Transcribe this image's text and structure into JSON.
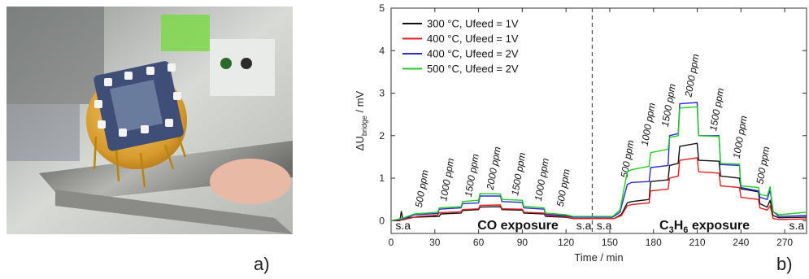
{
  "panels": {
    "a": {
      "label": "a)"
    },
    "b": {
      "label": "b)"
    }
  },
  "chart_data": {
    "type": "line",
    "xlabel": "Time / min",
    "ylabel_main": "ΔU",
    "ylabel_sub": "bridge",
    "ylabel_unit": " / mV",
    "xlim": [
      0,
      285
    ],
    "ylim": [
      -0.3,
      5
    ],
    "x_ticks": [
      0,
      30,
      60,
      90,
      120,
      150,
      180,
      210,
      240,
      270
    ],
    "y_ticks": [
      0,
      1,
      2,
      3,
      4,
      5
    ],
    "grid": false,
    "legend": "top-left",
    "vline_x": 138,
    "series": [
      {
        "name": "300 °C, Ufeed = 1V",
        "color": "#111111",
        "points": [
          [
            0,
            0
          ],
          [
            6,
            0
          ],
          [
            7,
            0.22
          ],
          [
            8,
            0.05
          ],
          [
            15,
            0.08
          ],
          [
            33,
            0.1
          ],
          [
            34,
            0.16
          ],
          [
            48,
            0.18
          ],
          [
            49,
            0.24
          ],
          [
            60,
            0.26
          ],
          [
            61,
            0.32
          ],
          [
            75,
            0.33
          ],
          [
            76,
            0.26
          ],
          [
            90,
            0.25
          ],
          [
            91,
            0.18
          ],
          [
            105,
            0.16
          ],
          [
            106,
            0.1
          ],
          [
            120,
            0.08
          ],
          [
            125,
            0.05
          ],
          [
            153,
            0.05
          ],
          [
            158,
            0.15
          ],
          [
            162,
            0.42
          ],
          [
            165,
            0.45
          ],
          [
            177,
            0.5
          ],
          [
            178,
            0.92
          ],
          [
            190,
            0.96
          ],
          [
            191,
            1.3
          ],
          [
            197,
            1.35
          ],
          [
            198,
            1.75
          ],
          [
            210,
            1.82
          ],
          [
            211,
            1.42
          ],
          [
            225,
            1.4
          ],
          [
            226,
            1.05
          ],
          [
            239,
            1.0
          ],
          [
            240,
            0.75
          ],
          [
            252,
            0.68
          ],
          [
            253,
            0.4
          ],
          [
            258,
            0.32
          ],
          [
            260,
            0.48
          ],
          [
            262,
            0.12
          ],
          [
            266,
            0.07
          ],
          [
            285,
            0.08
          ]
        ]
      },
      {
        "name": "400 °C, Ufeed = 1V",
        "color": "#e02020",
        "points": [
          [
            0,
            0
          ],
          [
            8,
            0.02
          ],
          [
            18,
            0.1
          ],
          [
            32,
            0.13
          ],
          [
            33,
            0.19
          ],
          [
            48,
            0.21
          ],
          [
            49,
            0.26
          ],
          [
            60,
            0.28
          ],
          [
            61,
            0.36
          ],
          [
            75,
            0.37
          ],
          [
            76,
            0.28
          ],
          [
            90,
            0.27
          ],
          [
            91,
            0.2
          ],
          [
            105,
            0.18
          ],
          [
            106,
            0.12
          ],
          [
            120,
            0.1
          ],
          [
            125,
            0.05
          ],
          [
            153,
            0.05
          ],
          [
            158,
            0.12
          ],
          [
            162,
            0.35
          ],
          [
            165,
            0.38
          ],
          [
            177,
            0.42
          ],
          [
            178,
            0.7
          ],
          [
            190,
            0.74
          ],
          [
            191,
            1.0
          ],
          [
            197,
            1.05
          ],
          [
            198,
            1.42
          ],
          [
            210,
            1.48
          ],
          [
            211,
            1.15
          ],
          [
            225,
            1.12
          ],
          [
            226,
            0.82
          ],
          [
            239,
            0.78
          ],
          [
            240,
            0.55
          ],
          [
            252,
            0.5
          ],
          [
            253,
            0.3
          ],
          [
            258,
            0.25
          ],
          [
            260,
            0.35
          ],
          [
            262,
            0.05
          ],
          [
            266,
            0.03
          ],
          [
            285,
            0.04
          ]
        ]
      },
      {
        "name": "400 °C, Ufeed = 2V",
        "color": "#2a2ad0",
        "points": [
          [
            0,
            0
          ],
          [
            8,
            0.04
          ],
          [
            16,
            0.14
          ],
          [
            32,
            0.17
          ],
          [
            33,
            0.27
          ],
          [
            48,
            0.3
          ],
          [
            49,
            0.4
          ],
          [
            60,
            0.42
          ],
          [
            61,
            0.58
          ],
          [
            75,
            0.58
          ],
          [
            76,
            0.45
          ],
          [
            90,
            0.43
          ],
          [
            91,
            0.3
          ],
          [
            105,
            0.27
          ],
          [
            106,
            0.15
          ],
          [
            120,
            0.12
          ],
          [
            125,
            0.08
          ],
          [
            152,
            0.08
          ],
          [
            157,
            0.2
          ],
          [
            162,
            0.85
          ],
          [
            165,
            0.9
          ],
          [
            177,
            0.92
          ],
          [
            178,
            1.25
          ],
          [
            190,
            1.3
          ],
          [
            191,
            2.0
          ],
          [
            197,
            2.05
          ],
          [
            198,
            2.75
          ],
          [
            210,
            2.78
          ],
          [
            211,
            2.0
          ],
          [
            225,
            2.0
          ],
          [
            226,
            1.32
          ],
          [
            239,
            1.3
          ],
          [
            240,
            0.78
          ],
          [
            252,
            0.7
          ],
          [
            253,
            0.55
          ],
          [
            258,
            0.5
          ],
          [
            260,
            0.72
          ],
          [
            262,
            0.22
          ],
          [
            266,
            0.1
          ],
          [
            285,
            0.12
          ]
        ]
      },
      {
        "name": "500 °C, Ufeed = 2V",
        "color": "#22cc22",
        "points": [
          [
            0,
            0
          ],
          [
            8,
            0.06
          ],
          [
            16,
            0.16
          ],
          [
            32,
            0.2
          ],
          [
            33,
            0.3
          ],
          [
            48,
            0.33
          ],
          [
            49,
            0.45
          ],
          [
            60,
            0.48
          ],
          [
            61,
            0.64
          ],
          [
            75,
            0.63
          ],
          [
            76,
            0.5
          ],
          [
            90,
            0.48
          ],
          [
            91,
            0.34
          ],
          [
            105,
            0.3
          ],
          [
            106,
            0.18
          ],
          [
            120,
            0.14
          ],
          [
            125,
            0.1
          ],
          [
            152,
            0.1
          ],
          [
            157,
            0.25
          ],
          [
            162,
            1.15
          ],
          [
            165,
            1.2
          ],
          [
            177,
            1.28
          ],
          [
            178,
            1.6
          ],
          [
            190,
            1.68
          ],
          [
            191,
            1.96
          ],
          [
            197,
            2.0
          ],
          [
            198,
            2.65
          ],
          [
            210,
            2.68
          ],
          [
            211,
            2.0
          ],
          [
            225,
            1.98
          ],
          [
            226,
            1.35
          ],
          [
            239,
            1.33
          ],
          [
            240,
            0.82
          ],
          [
            252,
            0.78
          ],
          [
            253,
            0.62
          ],
          [
            258,
            0.58
          ],
          [
            260,
            0.8
          ],
          [
            262,
            0.22
          ],
          [
            266,
            0.14
          ],
          [
            285,
            0.2
          ]
        ]
      }
    ],
    "annotations": {
      "concentrations": [
        {
          "text": "500 ppm",
          "x": 21,
          "y": 0.3
        },
        {
          "text": "1000 ppm",
          "x": 38,
          "y": 0.45
        },
        {
          "text": "1500 ppm",
          "x": 55,
          "y": 0.55
        },
        {
          "text": "2000 ppm",
          "x": 70,
          "y": 0.72
        },
        {
          "text": "1500 ppm",
          "x": 87,
          "y": 0.58
        },
        {
          "text": "1000 ppm",
          "x": 103,
          "y": 0.45
        },
        {
          "text": "500 ppm",
          "x": 118,
          "y": 0.32
        },
        {
          "text": "500 ppm",
          "x": 162,
          "y": 1.0
        },
        {
          "text": "1000 ppm",
          "x": 176,
          "y": 1.75
        },
        {
          "text": "1500 ppm",
          "x": 190,
          "y": 2.2
        },
        {
          "text": "2000 ppm",
          "x": 206,
          "y": 2.9
        },
        {
          "text": "1500 ppm",
          "x": 223,
          "y": 2.1
        },
        {
          "text": "1000 ppm",
          "x": 239,
          "y": 1.45
        },
        {
          "text": "500 ppm",
          "x": 255,
          "y": 0.85
        }
      ],
      "sa_labels": [
        {
          "text": "s.a",
          "x": 3
        },
        {
          "text": "s.a",
          "x": 127
        },
        {
          "text": "s.a",
          "x": 141
        },
        {
          "text": "s.a",
          "x": 273
        }
      ],
      "co_label": "CO exposure",
      "c3h6": {
        "pre": "C",
        "sub1": "3",
        "mid": "H",
        "sub2": "6",
        "post": " exposure"
      }
    }
  }
}
